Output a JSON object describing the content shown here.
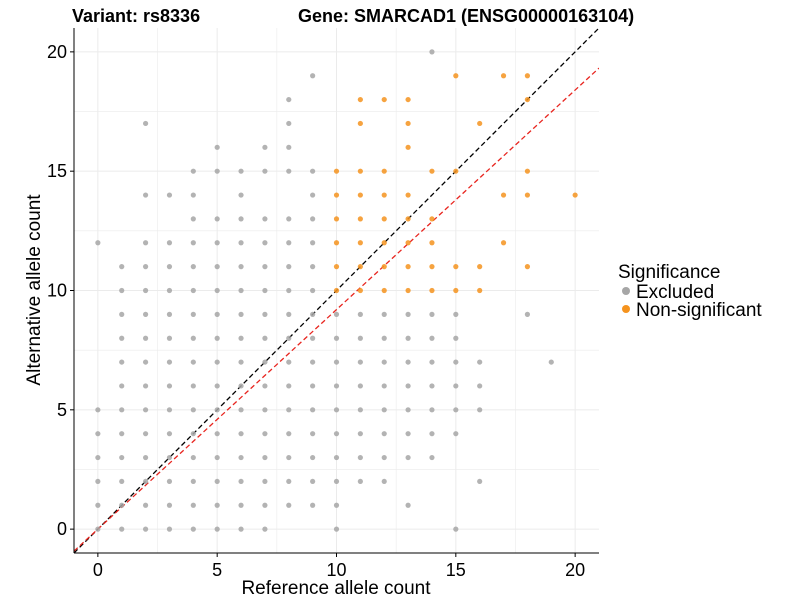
{
  "titles": {
    "variant": "Variant: rs8336",
    "gene": "Gene: SMARCAD1 (ENSG00000163104)"
  },
  "colors": {
    "excluded": "#a6a6a6",
    "non_significant": "#f5931e",
    "identity_line": "#000000",
    "fit_line": "#e8251f",
    "grid": "#ebebeb"
  },
  "chart_data": {
    "type": "scatter",
    "xlabel": "Reference allele count",
    "ylabel": "Alternative allele count",
    "xlim": [
      -1,
      21
    ],
    "ylim": [
      -1,
      21
    ],
    "x_ticks": [
      0,
      5,
      10,
      15,
      20
    ],
    "y_ticks": [
      0,
      5,
      10,
      15,
      20
    ],
    "grid": true,
    "legend": {
      "title": "Significance",
      "placement": "right",
      "entries": [
        "Excluded",
        "Non-significant"
      ]
    },
    "lines": [
      {
        "style": "dashed",
        "color": "#000000",
        "slope": 1.0,
        "intercept": 0
      },
      {
        "style": "dashed",
        "color": "#e8251f",
        "slope": 0.92,
        "intercept": 0
      }
    ],
    "series": [
      {
        "name": "Excluded",
        "color": "#a6a6a6",
        "points": [
          [
            0,
            0
          ],
          [
            0,
            1
          ],
          [
            0,
            2
          ],
          [
            0,
            3
          ],
          [
            0,
            4
          ],
          [
            0,
            5
          ],
          [
            0,
            12
          ],
          [
            1,
            0
          ],
          [
            1,
            1
          ],
          [
            1,
            2
          ],
          [
            1,
            3
          ],
          [
            1,
            4
          ],
          [
            1,
            5
          ],
          [
            1,
            6
          ],
          [
            1,
            7
          ],
          [
            1,
            8
          ],
          [
            1,
            9
          ],
          [
            1,
            10
          ],
          [
            1,
            11
          ],
          [
            2,
            0
          ],
          [
            2,
            1
          ],
          [
            2,
            2
          ],
          [
            2,
            3
          ],
          [
            2,
            4
          ],
          [
            2,
            5
          ],
          [
            2,
            6
          ],
          [
            2,
            7
          ],
          [
            2,
            8
          ],
          [
            2,
            9
          ],
          [
            2,
            10
          ],
          [
            2,
            11
          ],
          [
            2,
            12
          ],
          [
            2,
            14
          ],
          [
            2,
            17
          ],
          [
            3,
            0
          ],
          [
            3,
            1
          ],
          [
            3,
            2
          ],
          [
            3,
            3
          ],
          [
            3,
            4
          ],
          [
            3,
            5
          ],
          [
            3,
            6
          ],
          [
            3,
            7
          ],
          [
            3,
            8
          ],
          [
            3,
            9
          ],
          [
            3,
            10
          ],
          [
            3,
            11
          ],
          [
            3,
            12
          ],
          [
            3,
            14
          ],
          [
            4,
            0
          ],
          [
            4,
            1
          ],
          [
            4,
            2
          ],
          [
            4,
            3
          ],
          [
            4,
            4
          ],
          [
            4,
            5
          ],
          [
            4,
            6
          ],
          [
            4,
            7
          ],
          [
            4,
            8
          ],
          [
            4,
            9
          ],
          [
            4,
            10
          ],
          [
            4,
            11
          ],
          [
            4,
            12
          ],
          [
            4,
            13
          ],
          [
            4,
            14
          ],
          [
            4,
            15
          ],
          [
            5,
            0
          ],
          [
            5,
            1
          ],
          [
            5,
            2
          ],
          [
            5,
            3
          ],
          [
            5,
            4
          ],
          [
            5,
            5
          ],
          [
            5,
            6
          ],
          [
            5,
            7
          ],
          [
            5,
            8
          ],
          [
            5,
            9
          ],
          [
            5,
            10
          ],
          [
            5,
            11
          ],
          [
            5,
            12
          ],
          [
            5,
            13
          ],
          [
            5,
            15
          ],
          [
            5,
            16
          ],
          [
            6,
            0
          ],
          [
            6,
            1
          ],
          [
            6,
            2
          ],
          [
            6,
            3
          ],
          [
            6,
            4
          ],
          [
            6,
            5
          ],
          [
            6,
            6
          ],
          [
            6,
            7
          ],
          [
            6,
            8
          ],
          [
            6,
            9
          ],
          [
            6,
            10
          ],
          [
            6,
            11
          ],
          [
            6,
            12
          ],
          [
            6,
            13
          ],
          [
            6,
            14
          ],
          [
            6,
            15
          ],
          [
            7,
            0
          ],
          [
            7,
            1
          ],
          [
            7,
            2
          ],
          [
            7,
            3
          ],
          [
            7,
            4
          ],
          [
            7,
            5
          ],
          [
            7,
            6
          ],
          [
            7,
            7
          ],
          [
            7,
            8
          ],
          [
            7,
            9
          ],
          [
            7,
            10
          ],
          [
            7,
            11
          ],
          [
            7,
            12
          ],
          [
            7,
            13
          ],
          [
            7,
            15
          ],
          [
            7,
            16
          ],
          [
            8,
            1
          ],
          [
            8,
            2
          ],
          [
            8,
            3
          ],
          [
            8,
            4
          ],
          [
            8,
            5
          ],
          [
            8,
            6
          ],
          [
            8,
            7
          ],
          [
            8,
            8
          ],
          [
            8,
            9
          ],
          [
            8,
            10
          ],
          [
            8,
            11
          ],
          [
            8,
            12
          ],
          [
            8,
            13
          ],
          [
            8,
            15
          ],
          [
            8,
            16
          ],
          [
            8,
            17
          ],
          [
            8,
            18
          ],
          [
            9,
            1
          ],
          [
            9,
            2
          ],
          [
            9,
            3
          ],
          [
            9,
            4
          ],
          [
            9,
            5
          ],
          [
            9,
            6
          ],
          [
            9,
            7
          ],
          [
            9,
            8
          ],
          [
            9,
            9
          ],
          [
            9,
            10
          ],
          [
            9,
            11
          ],
          [
            9,
            12
          ],
          [
            9,
            13
          ],
          [
            9,
            14
          ],
          [
            9,
            15
          ],
          [
            9,
            19
          ],
          [
            10,
            0
          ],
          [
            10,
            1
          ],
          [
            10,
            2
          ],
          [
            10,
            3
          ],
          [
            10,
            4
          ],
          [
            10,
            5
          ],
          [
            10,
            6
          ],
          [
            10,
            7
          ],
          [
            10,
            8
          ],
          [
            10,
            9
          ],
          [
            11,
            2
          ],
          [
            11,
            3
          ],
          [
            11,
            4
          ],
          [
            11,
            5
          ],
          [
            11,
            6
          ],
          [
            11,
            7
          ],
          [
            11,
            8
          ],
          [
            11,
            9
          ],
          [
            12,
            2
          ],
          [
            12,
            3
          ],
          [
            12,
            4
          ],
          [
            12,
            5
          ],
          [
            12,
            6
          ],
          [
            12,
            7
          ],
          [
            12,
            8
          ],
          [
            12,
            9
          ],
          [
            13,
            1
          ],
          [
            13,
            3
          ],
          [
            13,
            4
          ],
          [
            13,
            5
          ],
          [
            13,
            6
          ],
          [
            13,
            7
          ],
          [
            13,
            8
          ],
          [
            13,
            9
          ],
          [
            14,
            3
          ],
          [
            14,
            4
          ],
          [
            14,
            5
          ],
          [
            14,
            6
          ],
          [
            14,
            7
          ],
          [
            14,
            8
          ],
          [
            14,
            9
          ],
          [
            14,
            20
          ],
          [
            15,
            0
          ],
          [
            15,
            4
          ],
          [
            15,
            5
          ],
          [
            15,
            6
          ],
          [
            15,
            7
          ],
          [
            15,
            8
          ],
          [
            15,
            9
          ],
          [
            16,
            2
          ],
          [
            16,
            5
          ],
          [
            16,
            6
          ],
          [
            16,
            7
          ],
          [
            18,
            9
          ],
          [
            19,
            7
          ]
        ]
      },
      {
        "name": "Non-significant",
        "color": "#f5931e",
        "points": [
          [
            10,
            10
          ],
          [
            10,
            11
          ],
          [
            10,
            12
          ],
          [
            10,
            13
          ],
          [
            10,
            14
          ],
          [
            10,
            15
          ],
          [
            11,
            10
          ],
          [
            11,
            11
          ],
          [
            11,
            12
          ],
          [
            11,
            13
          ],
          [
            11,
            14
          ],
          [
            11,
            15
          ],
          [
            11,
            17
          ],
          [
            11,
            18
          ],
          [
            12,
            10
          ],
          [
            12,
            11
          ],
          [
            12,
            12
          ],
          [
            12,
            13
          ],
          [
            12,
            14
          ],
          [
            12,
            15
          ],
          [
            12,
            18
          ],
          [
            13,
            10
          ],
          [
            13,
            11
          ],
          [
            13,
            12
          ],
          [
            13,
            13
          ],
          [
            13,
            14
          ],
          [
            13,
            16
          ],
          [
            13,
            17
          ],
          [
            13,
            18
          ],
          [
            14,
            10
          ],
          [
            14,
            11
          ],
          [
            14,
            12
          ],
          [
            14,
            13
          ],
          [
            14,
            15
          ],
          [
            15,
            10
          ],
          [
            15,
            11
          ],
          [
            15,
            15
          ],
          [
            15,
            19
          ],
          [
            16,
            10
          ],
          [
            16,
            11
          ],
          [
            16,
            17
          ],
          [
            17,
            12
          ],
          [
            17,
            14
          ],
          [
            17,
            19
          ],
          [
            18,
            11
          ],
          [
            18,
            14
          ],
          [
            18,
            15
          ],
          [
            18,
            18
          ],
          [
            18,
            19
          ],
          [
            20,
            14
          ]
        ]
      }
    ]
  }
}
